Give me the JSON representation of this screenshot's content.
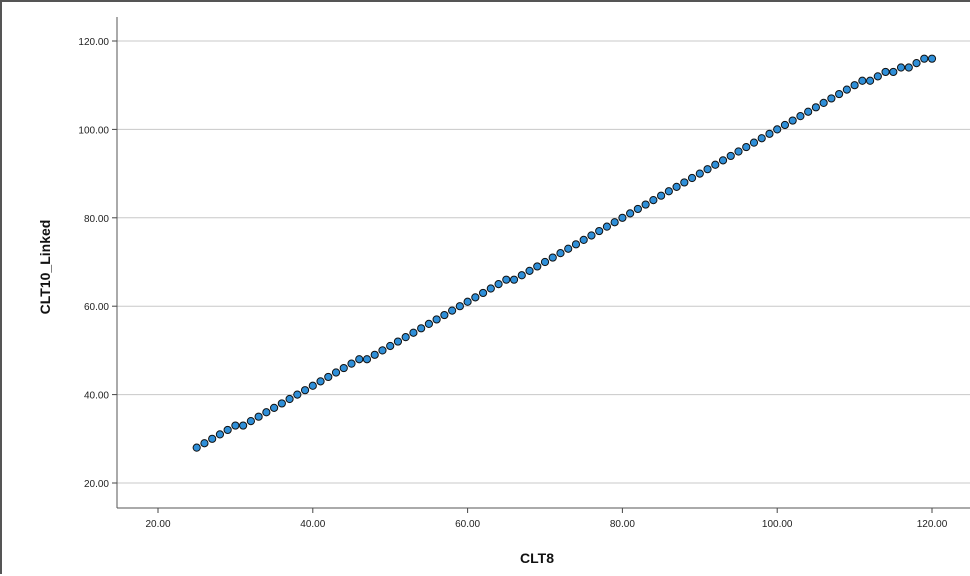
{
  "chart_data": {
    "type": "scatter",
    "title": "",
    "xlabel": "CLT8",
    "ylabel": "CLT10_Linked",
    "xlim": [
      15,
      121
    ],
    "ylim": [
      15,
      126
    ],
    "xticks": [
      "20.00",
      "40.00",
      "60.00",
      "80.00",
      "100.00",
      "120.00"
    ],
    "yticks": [
      "20.00",
      "40.00",
      "60.00",
      "80.00",
      "100.00",
      "120.00"
    ],
    "grid": "horizontal",
    "marker_color": "#2f8fd8",
    "marker_edge_color": "#111111",
    "series": [
      {
        "points": [
          [
            25,
            28
          ],
          [
            26,
            29
          ],
          [
            27,
            30
          ],
          [
            28,
            31
          ],
          [
            29,
            32
          ],
          [
            30,
            33
          ],
          [
            31,
            33
          ],
          [
            32,
            34
          ],
          [
            33,
            35
          ],
          [
            34,
            36
          ],
          [
            35,
            37
          ],
          [
            36,
            38
          ],
          [
            37,
            39
          ],
          [
            38,
            40
          ],
          [
            39,
            41
          ],
          [
            40,
            42
          ],
          [
            41,
            43
          ],
          [
            42,
            44
          ],
          [
            43,
            45
          ],
          [
            44,
            46
          ],
          [
            45,
            47
          ],
          [
            46,
            48
          ],
          [
            47,
            48
          ],
          [
            48,
            49
          ],
          [
            49,
            50
          ],
          [
            50,
            51
          ],
          [
            51,
            52
          ],
          [
            52,
            53
          ],
          [
            53,
            54
          ],
          [
            54,
            55
          ],
          [
            55,
            56
          ],
          [
            56,
            57
          ],
          [
            57,
            58
          ],
          [
            58,
            59
          ],
          [
            59,
            60
          ],
          [
            60,
            61
          ],
          [
            61,
            62
          ],
          [
            62,
            63
          ],
          [
            63,
            64
          ],
          [
            64,
            65
          ],
          [
            65,
            66
          ],
          [
            66,
            66
          ],
          [
            67,
            67
          ],
          [
            68,
            68
          ],
          [
            69,
            69
          ],
          [
            70,
            70
          ],
          [
            71,
            71
          ],
          [
            72,
            72
          ],
          [
            73,
            73
          ],
          [
            74,
            74
          ],
          [
            75,
            75
          ],
          [
            76,
            76
          ],
          [
            77,
            77
          ],
          [
            78,
            78
          ],
          [
            79,
            79
          ],
          [
            80,
            80
          ],
          [
            81,
            81
          ],
          [
            82,
            82
          ],
          [
            83,
            83
          ],
          [
            84,
            84
          ],
          [
            85,
            85
          ],
          [
            86,
            86
          ],
          [
            87,
            87
          ],
          [
            88,
            88
          ],
          [
            89,
            89
          ],
          [
            90,
            90
          ],
          [
            91,
            91
          ],
          [
            92,
            92
          ],
          [
            93,
            93
          ],
          [
            94,
            94
          ],
          [
            95,
            95
          ],
          [
            96,
            96
          ],
          [
            97,
            97
          ],
          [
            98,
            98
          ],
          [
            99,
            99
          ],
          [
            100,
            100
          ],
          [
            101,
            101
          ],
          [
            102,
            102
          ],
          [
            103,
            103
          ],
          [
            104,
            104
          ],
          [
            105,
            105
          ],
          [
            106,
            106
          ],
          [
            107,
            107
          ],
          [
            108,
            108
          ],
          [
            109,
            109
          ],
          [
            110,
            110
          ],
          [
            111,
            111
          ],
          [
            112,
            111
          ],
          [
            113,
            112
          ],
          [
            114,
            113
          ],
          [
            115,
            113
          ],
          [
            116,
            114
          ],
          [
            117,
            114
          ],
          [
            118,
            115
          ],
          [
            119,
            116
          ],
          [
            120,
            116
          ]
        ]
      }
    ]
  }
}
